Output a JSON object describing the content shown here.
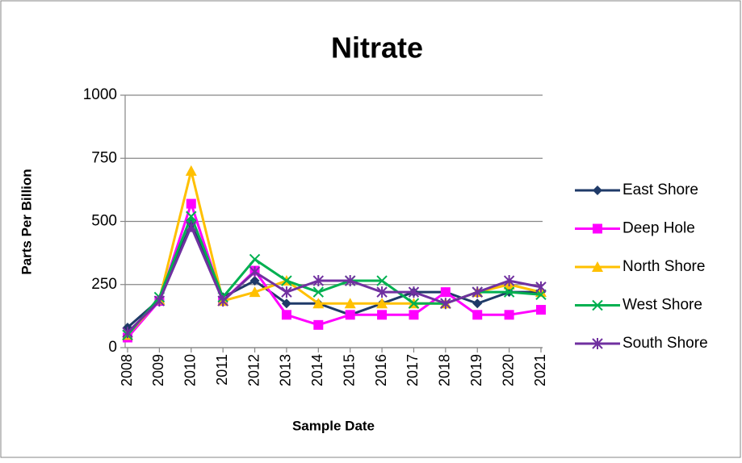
{
  "chart_data": {
    "type": "line",
    "title": "Nitrate",
    "x_label": "Sample Date",
    "y_label": "Parts Per Billion",
    "categories": [
      "2008",
      "2009",
      "2010",
      "2011",
      "2012",
      "2013",
      "2014",
      "2015",
      "2016",
      "2017",
      "2018",
      "2019",
      "2020",
      "2021"
    ],
    "series": [
      {
        "name": "East Shore",
        "color": "#1F3A68",
        "marker": "diamond",
        "values": [
          80,
          190,
          490,
          200,
          265,
          175,
          175,
          130,
          175,
          220,
          220,
          175,
          220,
          220
        ]
      },
      {
        "name": "Deep Hole",
        "color": "#FF00FF",
        "marker": "square",
        "values": [
          40,
          185,
          570,
          185,
          305,
          130,
          90,
          130,
          130,
          130,
          220,
          130,
          130,
          150
        ]
      },
      {
        "name": "North Shore",
        "color": "#FFC000",
        "marker": "triangle",
        "values": [
          50,
          190,
          700,
          185,
          220,
          265,
          175,
          175,
          175,
          175,
          175,
          220,
          250,
          220
        ]
      },
      {
        "name": "West Shore",
        "color": "#00B050",
        "marker": "x",
        "values": [
          50,
          200,
          520,
          200,
          350,
          265,
          220,
          265,
          265,
          175,
          175,
          220,
          220,
          210
        ]
      },
      {
        "name": "South Shore",
        "color": "#7030A0",
        "marker": "star",
        "values": [
          60,
          185,
          480,
          185,
          300,
          220,
          265,
          265,
          220,
          220,
          175,
          220,
          265,
          240
        ]
      }
    ],
    "ylim": [
      0,
      1000
    ],
    "yticks": [
      0,
      250,
      500,
      750,
      1000
    ],
    "grid": true,
    "legend": "right"
  }
}
